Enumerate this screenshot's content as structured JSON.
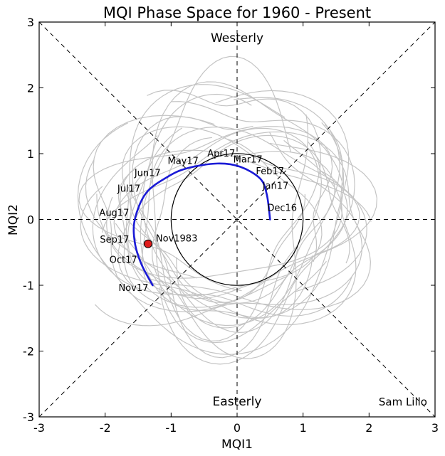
{
  "chart_data": {
    "type": "line",
    "title": "MQI Phase Space for 1960 - Present",
    "xlabel": "MQI1",
    "ylabel": "MQI2",
    "xlim": [
      -3,
      3
    ],
    "ylim": [
      -3,
      3
    ],
    "xticks": [
      "-3",
      "-2",
      "-1",
      "0",
      "1",
      "2",
      "3"
    ],
    "yticks": [
      "-3",
      "-2",
      "-1",
      "0",
      "1",
      "2",
      "3"
    ],
    "regions": {
      "top": "Westerly",
      "bottom": "Easterly"
    },
    "credit": "Sam Lillo",
    "unit_circle_radius": 1,
    "colors": {
      "trajectory": "#1a1ad6",
      "background_cycles": "#c4c4c4",
      "marker": "#e01b1b"
    },
    "series": [
      {
        "name": "Dec16 - Nov17",
        "points": [
          {
            "label": "Dec16",
            "x": 0.5,
            "y": 0.0
          },
          {
            "label": "Jan17",
            "x": 0.45,
            "y": 0.38
          },
          {
            "label": "Feb17",
            "x": 0.35,
            "y": 0.62
          },
          {
            "label": "Mar17",
            "x": 0.05,
            "y": 0.8
          },
          {
            "label": "Apr17",
            "x": -0.3,
            "y": 0.85
          },
          {
            "label": "May17",
            "x": -0.75,
            "y": 0.78
          },
          {
            "label": "Jun17",
            "x": -1.05,
            "y": 0.65
          },
          {
            "label": "Jul17",
            "x": -1.38,
            "y": 0.4
          },
          {
            "label": "Aug17",
            "x": -1.55,
            "y": 0.0
          },
          {
            "label": "Sep17",
            "x": -1.55,
            "y": -0.35
          },
          {
            "label": "Oct17",
            "x": -1.45,
            "y": -0.68
          },
          {
            "label": "Nov17",
            "x": -1.28,
            "y": -1.0
          }
        ]
      }
    ],
    "marker": {
      "label": "Nov1983",
      "x": -1.35,
      "y": -0.37
    }
  }
}
